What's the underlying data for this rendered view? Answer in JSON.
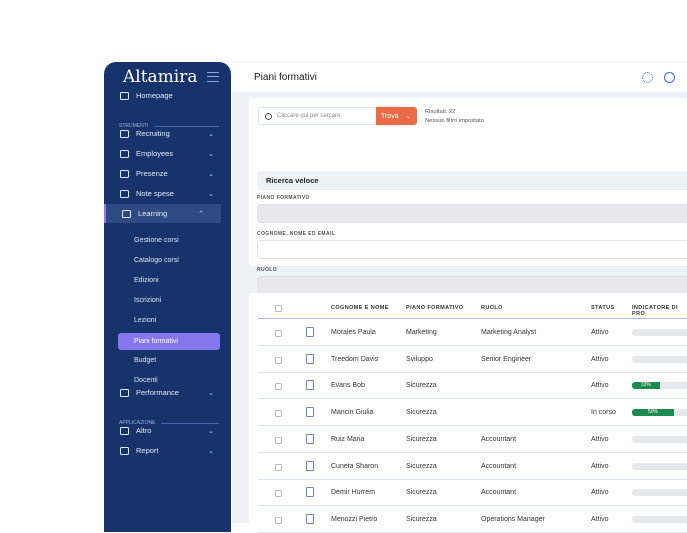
{
  "sidebar": {
    "logo": "Altamira",
    "sections": [
      "STRUMENTI",
      "APPLICAZIONE"
    ],
    "items": [
      {
        "label": "Homepage"
      },
      {
        "label": "Recruiting"
      },
      {
        "label": "Employees"
      },
      {
        "label": "Presenze"
      },
      {
        "label": "Note spese"
      },
      {
        "label": "Learning"
      },
      {
        "label": "Performance"
      },
      {
        "label": "Altro"
      },
      {
        "label": "Report"
      }
    ],
    "learning_sub": [
      "Gestione corsi",
      "Catalogo corsi",
      "Edizioni",
      "Iscrizioni",
      "Lezioni",
      "Piani formativi",
      "Budget",
      "Docenti"
    ],
    "active": "Piani formativi"
  },
  "header": {
    "title": "Piani formativi",
    "icons": [
      "gear-icon",
      "clock-icon"
    ]
  },
  "filters": {
    "search_placeholder": "Cliccare qui per cercare",
    "find_label": "Trova",
    "results": "Risultati: 22",
    "no_filter": "Nessun filtro impostato",
    "quick_search": "Ricerca veloce",
    "labels": [
      "PIANO FORMATIVO",
      "COGNOME, NOME ED EMAIL",
      "RUOLO"
    ]
  },
  "table": {
    "columns": [
      "COGNOME E NOME",
      "PIANO FORMATIVO",
      "RUOLO",
      "STATUS",
      "INDICATORE DI PRO"
    ],
    "rows": [
      {
        "name": "Morales Paula",
        "plan": "Marketing",
        "role": "Marketing Analyst",
        "status": "Attivo",
        "progress": 0,
        "label": ""
      },
      {
        "name": "Treedom Davis",
        "plan": "Sviluppo",
        "role": "Senior Engineer",
        "status": "Attivo",
        "progress": 0,
        "label": ""
      },
      {
        "name": "Evans Bob",
        "plan": "Sicurezza",
        "role": "",
        "status": "Attivo",
        "progress": 33,
        "label": "33%"
      },
      {
        "name": "Mancin Giulia",
        "plan": "Sicurezza",
        "role": "",
        "status": "In corso",
        "progress": 50,
        "label": "50%"
      },
      {
        "name": "Ruiz Maria",
        "plan": "Sicurezza",
        "role": "Accountant",
        "status": "Attivo",
        "progress": 0,
        "label": ""
      },
      {
        "name": "Cuneta Sharon",
        "plan": "Sicurezza",
        "role": "Accountant",
        "status": "Attivo",
        "progress": 0,
        "label": ""
      },
      {
        "name": "Demir Hurrem",
        "plan": "Sicurezza",
        "role": "Accountant",
        "status": "Attivo",
        "progress": 0,
        "label": ""
      },
      {
        "name": "Menozzi Pietro",
        "plan": "Sicurezza",
        "role": "Operations Manager",
        "status": "Attivo",
        "progress": 0,
        "label": ""
      }
    ]
  },
  "colors": {
    "sidebar": "#16336b",
    "active": "#8576ee",
    "accent": "#ec6a47",
    "progress": "#1d8a4d"
  }
}
